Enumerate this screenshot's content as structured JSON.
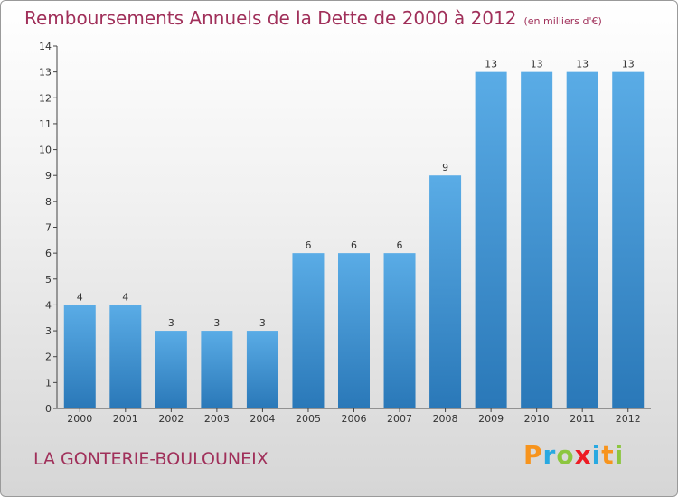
{
  "header": {
    "title": "Remboursements Annuels de la Dette de 2000 à 2012",
    "subtitle": "(en milliers d'€)"
  },
  "footer": {
    "commune": "LA GONTERIE-BOULOUNEIX",
    "logo_text": "Proxiti",
    "logo_letters": [
      {
        "ch": "P",
        "color": "#f7941d"
      },
      {
        "ch": "r",
        "color": "#29a9e1"
      },
      {
        "ch": "o",
        "color": "#8cc63f"
      },
      {
        "ch": "x",
        "color": "#ed1c24"
      },
      {
        "ch": "i",
        "color": "#29a9e1"
      },
      {
        "ch": "t",
        "color": "#f7941d"
      },
      {
        "ch": "i",
        "color": "#8cc63f"
      }
    ]
  },
  "chart_data": {
    "type": "bar",
    "title": "Remboursements Annuels de la Dette de 2000 à 2012",
    "subtitle": "(en milliers d'€)",
    "categories": [
      "2000",
      "2001",
      "2002",
      "2003",
      "2004",
      "2005",
      "2006",
      "2007",
      "2008",
      "2009",
      "2010",
      "2011",
      "2012"
    ],
    "values": [
      4,
      4,
      3,
      3,
      3,
      6,
      6,
      6,
      9,
      13,
      13,
      13,
      13
    ],
    "ylim": [
      0,
      14
    ],
    "yticks": [
      0,
      1,
      2,
      3,
      4,
      5,
      6,
      7,
      8,
      9,
      10,
      11,
      12,
      13,
      14
    ],
    "grid": false,
    "bar_color": "#3f95d6"
  }
}
